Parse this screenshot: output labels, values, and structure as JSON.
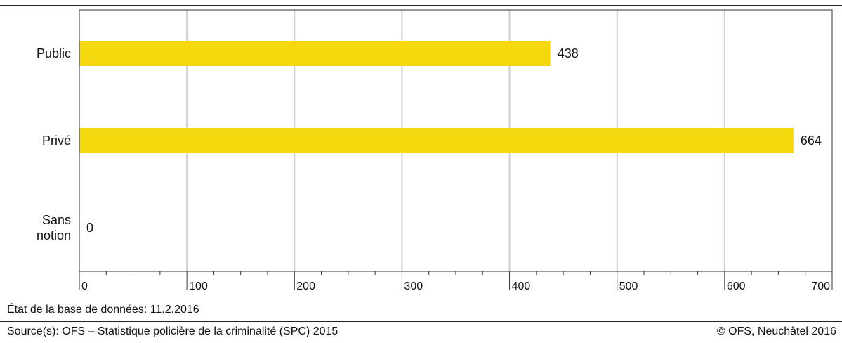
{
  "chart_data": {
    "type": "bar",
    "orientation": "horizontal",
    "categories": [
      [
        "Public"
      ],
      [
        "Privé"
      ],
      [
        "Sans",
        "notion"
      ]
    ],
    "values": [
      438,
      664,
      0
    ],
    "value_labels": [
      "438",
      "664",
      "0"
    ],
    "xlim": [
      0,
      700
    ],
    "xticks": [
      0,
      100,
      200,
      300,
      400,
      500,
      600,
      700
    ],
    "grid": true,
    "bar_color": "#f5d90f"
  },
  "footer": {
    "db_state": "État de la base de données: 11.2.2016",
    "source": "Source(s): OFS – Statistique policière de la criminalité (SPC) 2015",
    "copyright": "© OFS, Neuchâtel 2016"
  }
}
